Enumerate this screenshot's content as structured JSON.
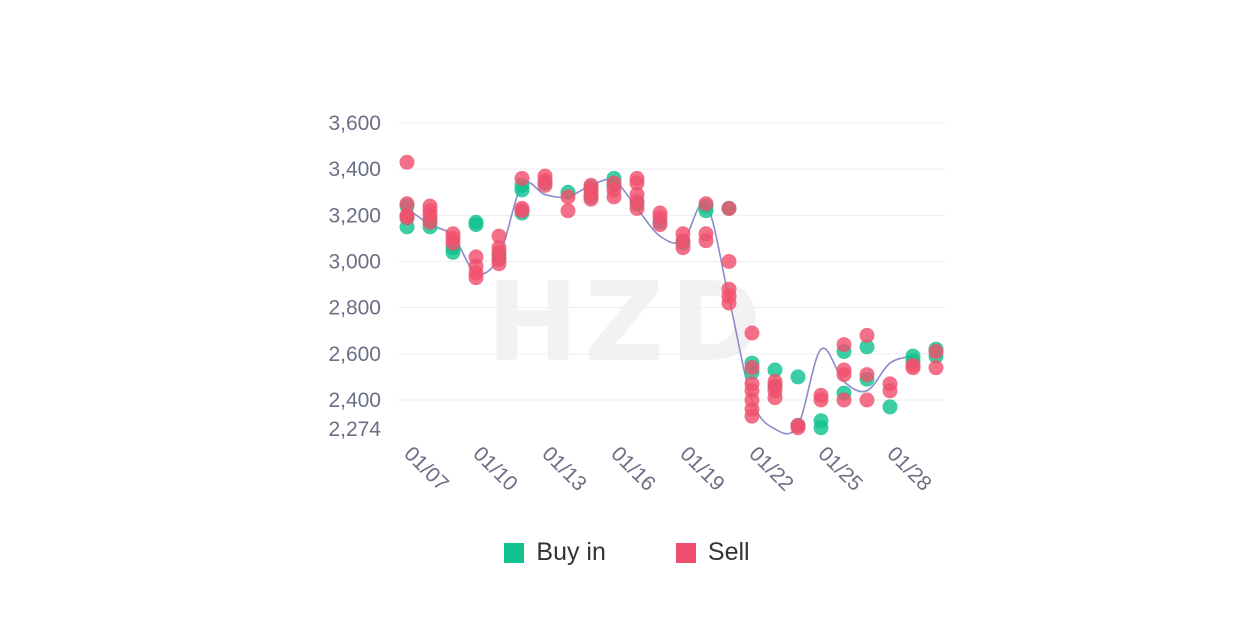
{
  "watermark": "HZD",
  "colors": {
    "buy": "#10c28f",
    "sell": "#f0506e",
    "line": "#8a8ccc",
    "axis_text": "#6b6f86"
  },
  "chart_data": {
    "type": "scatter",
    "x": [
      "01/07",
      "01/08",
      "01/09",
      "01/10",
      "01/11",
      "01/12",
      "01/13",
      "01/14",
      "01/15",
      "01/16",
      "01/17",
      "01/18",
      "01/19",
      "01/20",
      "01/21",
      "01/22",
      "01/23",
      "01/24",
      "01/25",
      "01/26",
      "01/27",
      "01/28",
      "01/29"
    ],
    "x_tick_labels": [
      "01/07",
      "01/10",
      "01/13",
      "01/16",
      "01/19",
      "01/22",
      "01/25",
      "01/28"
    ],
    "y_tick_labels": [
      "3,600",
      "3,400",
      "3,200",
      "3,000",
      "2,800",
      "2,600",
      "2,400",
      "2,274"
    ],
    "y_ticks": [
      3600,
      3400,
      3200,
      3000,
      2800,
      2600,
      2400,
      2274
    ],
    "ylim": [
      2274,
      3600
    ],
    "grid": true,
    "legend_position": "bottom",
    "trend_line": [
      3230,
      3160,
      3110,
      2950,
      3020,
      3330,
      3290,
      3280,
      3330,
      3350,
      3230,
      3110,
      3090,
      3250,
      2840,
      2400,
      2274,
      2290,
      2620,
      2480,
      2440,
      2560,
      2590
    ],
    "series": [
      {
        "name": "Buy in",
        "points": [
          [
            "01/07",
            3150
          ],
          [
            "01/07",
            3190
          ],
          [
            "01/07",
            3240
          ],
          [
            "01/08",
            3150
          ],
          [
            "01/08",
            3180
          ],
          [
            "01/09",
            3040
          ],
          [
            "01/09",
            3060
          ],
          [
            "01/10",
            3170
          ],
          [
            "01/10",
            3160
          ],
          [
            "01/11",
            3010
          ],
          [
            "01/11",
            3030
          ],
          [
            "01/12",
            3210
          ],
          [
            "01/12",
            3310
          ],
          [
            "01/12",
            3330
          ],
          [
            "01/13",
            3340
          ],
          [
            "01/14",
            3300
          ],
          [
            "01/15",
            3320
          ],
          [
            "01/15",
            3280
          ],
          [
            "01/16",
            3360
          ],
          [
            "01/16",
            3330
          ],
          [
            "01/17",
            3250
          ],
          [
            "01/18",
            3170
          ],
          [
            "01/19",
            3080
          ],
          [
            "01/20",
            3220
          ],
          [
            "01/20",
            3240
          ],
          [
            "01/21",
            3230
          ],
          [
            "01/22",
            2560
          ],
          [
            "01/22",
            2520
          ],
          [
            "01/23",
            2530
          ],
          [
            "01/23",
            2460
          ],
          [
            "01/24",
            2500
          ],
          [
            "01/24",
            2290
          ],
          [
            "01/25",
            2280
          ],
          [
            "01/25",
            2310
          ],
          [
            "01/26",
            2610
          ],
          [
            "01/26",
            2430
          ],
          [
            "01/27",
            2630
          ],
          [
            "01/27",
            2490
          ],
          [
            "01/28",
            2370
          ],
          [
            "01/29",
            2590
          ],
          [
            "01/29",
            2570
          ],
          [
            "01/30",
            2620
          ],
          [
            "01/30",
            2590
          ]
        ]
      },
      {
        "name": "Sell",
        "points": [
          [
            "01/07",
            3430
          ],
          [
            "01/07",
            3250
          ],
          [
            "01/07",
            3200
          ],
          [
            "01/07",
            3190
          ],
          [
            "01/08",
            3240
          ],
          [
            "01/08",
            3220
          ],
          [
            "01/08",
            3200
          ],
          [
            "01/08",
            3170
          ],
          [
            "01/09",
            3120
          ],
          [
            "01/09",
            3100
          ],
          [
            "01/09",
            3080
          ],
          [
            "01/10",
            3020
          ],
          [
            "01/10",
            2980
          ],
          [
            "01/10",
            2950
          ],
          [
            "01/10",
            2930
          ],
          [
            "01/11",
            3110
          ],
          [
            "01/11",
            3060
          ],
          [
            "01/11",
            3040
          ],
          [
            "01/11",
            3010
          ],
          [
            "01/11",
            2990
          ],
          [
            "01/12",
            3360
          ],
          [
            "01/12",
            3230
          ],
          [
            "01/12",
            3220
          ],
          [
            "01/13",
            3370
          ],
          [
            "01/13",
            3350
          ],
          [
            "01/13",
            3330
          ],
          [
            "01/14",
            3280
          ],
          [
            "01/14",
            3220
          ],
          [
            "01/15",
            3330
          ],
          [
            "01/15",
            3310
          ],
          [
            "01/15",
            3290
          ],
          [
            "01/15",
            3270
          ],
          [
            "01/16",
            3340
          ],
          [
            "01/16",
            3310
          ],
          [
            "01/16",
            3280
          ],
          [
            "01/17",
            3360
          ],
          [
            "01/17",
            3340
          ],
          [
            "01/17",
            3290
          ],
          [
            "01/17",
            3260
          ],
          [
            "01/17",
            3230
          ],
          [
            "01/18",
            3210
          ],
          [
            "01/18",
            3190
          ],
          [
            "01/18",
            3160
          ],
          [
            "01/19",
            3120
          ],
          [
            "01/19",
            3090
          ],
          [
            "01/19",
            3060
          ],
          [
            "01/20",
            3250
          ],
          [
            "01/20",
            3120
          ],
          [
            "01/20",
            3090
          ],
          [
            "01/21",
            3230
          ],
          [
            "01/21",
            3000
          ],
          [
            "01/21",
            2880
          ],
          [
            "01/21",
            2850
          ],
          [
            "01/21",
            2820
          ],
          [
            "01/22",
            2690
          ],
          [
            "01/22",
            2540
          ],
          [
            "01/22",
            2470
          ],
          [
            "01/22",
            2440
          ],
          [
            "01/22",
            2400
          ],
          [
            "01/22",
            2360
          ],
          [
            "01/22",
            2330
          ],
          [
            "01/23",
            2480
          ],
          [
            "01/23",
            2460
          ],
          [
            "01/23",
            2440
          ],
          [
            "01/23",
            2410
          ],
          [
            "01/24",
            2290
          ],
          [
            "01/24",
            2280
          ],
          [
            "01/25",
            2420
          ],
          [
            "01/25",
            2400
          ],
          [
            "01/26",
            2640
          ],
          [
            "01/26",
            2530
          ],
          [
            "01/26",
            2510
          ],
          [
            "01/26",
            2400
          ],
          [
            "01/27",
            2680
          ],
          [
            "01/27",
            2510
          ],
          [
            "01/27",
            2400
          ],
          [
            "01/28",
            2470
          ],
          [
            "01/28",
            2440
          ],
          [
            "01/29",
            2550
          ],
          [
            "01/29",
            2540
          ],
          [
            "01/30",
            2610
          ],
          [
            "01/30",
            2540
          ]
        ]
      }
    ]
  }
}
